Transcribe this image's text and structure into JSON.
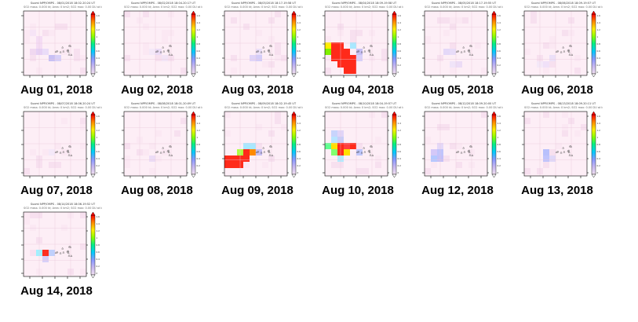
{
  "gallery": {
    "items": [
      {
        "date": "Aug 01, 2018",
        "header": "Suomi NPP/OMPS - 08/01/2018 18:02-20:24 UT",
        "subheader": "SO2 mass: 0.000 kt; Area: 0 km2; SO2 max: 0.00 DU at lon: 0.00 lat: 0.00 ; 18:00UTC",
        "plume": [
          [
            2,
            4,
            "#f4dcf4"
          ],
          [
            2,
            5,
            "#f4dcf4"
          ],
          [
            1,
            6,
            "#f0d8f0"
          ],
          [
            2,
            6,
            "#e6d0f4"
          ],
          [
            3,
            6,
            "#eadcf8"
          ],
          [
            4,
            7,
            "#c8c0f4"
          ],
          [
            5,
            7,
            "#d8d0f8"
          ],
          [
            1,
            3,
            "#f6e4f6"
          ]
        ]
      },
      {
        "date": "Aug 02, 2018",
        "header": "Suomi NPP/OMPS - 08/02/2018 18:04-20:17 UT",
        "subheader": "SO2 mass: 0.000 kt; Area: 0 km2; SO2 max: 0.00 DU at lon: 0.00 lat: 0.00 ; 18:00UTC",
        "plume": [
          [
            5,
            6,
            "#ecdcf6"
          ],
          [
            6,
            7,
            "#f2e4f6"
          ],
          [
            4,
            6,
            "#f4e8f8"
          ]
        ]
      },
      {
        "date": "Aug 03, 2018",
        "header": "Suomi NPP/OMPS - 08/03/2018 18:17-19:58 UT",
        "subheader": "SO2 mass: 0.000 kt; Area: 0 km2; SO2 max: 0.00 DU at lon: 0.00 lat: 0.00 ; 18:00UTC",
        "plume": [
          [
            4,
            7,
            "#e0d4f8"
          ],
          [
            5,
            7,
            "#d4ccf8"
          ],
          [
            5,
            6,
            "#ece0f8"
          ]
        ]
      },
      {
        "date": "Aug 04, 2018",
        "header": "Suomi NPP/OMPS - 08/04/2018 18:09-19:58 UT",
        "subheader": "SO2 mass: 0.000 kt; Area: 0 km2; SO2 max: 0.00 DU at lon: 0.00 lat: 0.00 ; 18:00UTC",
        "plume": [
          [
            0,
            5,
            "#ffee00"
          ],
          [
            1,
            5,
            "#ff2a1a"
          ],
          [
            2,
            5,
            "#ff2a1a"
          ],
          [
            0,
            6,
            "#7ff000"
          ],
          [
            1,
            6,
            "#ff2a1a"
          ],
          [
            2,
            6,
            "#ff2a1a"
          ],
          [
            3,
            6,
            "#ff2a1a"
          ],
          [
            1,
            7,
            "#ff2a1a"
          ],
          [
            2,
            7,
            "#ff2a1a"
          ],
          [
            3,
            7,
            "#ff2a1a"
          ],
          [
            4,
            7,
            "#ff2a1a"
          ],
          [
            2,
            8,
            "#ff2a1a"
          ],
          [
            3,
            8,
            "#ff2a1a"
          ],
          [
            4,
            8,
            "#ff2a1a"
          ],
          [
            3,
            9,
            "#ff2a1a"
          ],
          [
            4,
            9,
            "#ff2a1a"
          ],
          [
            4,
            5,
            "#a8e8ff"
          ],
          [
            5,
            6,
            "#c8c0f4"
          ],
          [
            5,
            7,
            "#d8d0f8"
          ]
        ]
      },
      {
        "date": "Aug 05, 2018",
        "header": "Suomi NPP/OMPS - 08/05/2018 18:17-19:55 UT",
        "subheader": "SO2 mass: 0.000 kt; Area: 0 km2; SO2 max: 0.00 DU at lon: 0.00 lat: 0.00 ; 18:00UTC",
        "plume": [
          [
            3,
            6,
            "#e4d8f8"
          ],
          [
            4,
            6,
            "#e8dcf8"
          ],
          [
            4,
            8,
            "#f0e4f8"
          ],
          [
            5,
            8,
            "#ecdcf6"
          ]
        ]
      },
      {
        "date": "Aug 06, 2018",
        "header": "Suomi NPP/OMPS - 08/06/2018 18:09-19:57 UT",
        "subheader": "SO2 mass: 0.000 kt; Area: 0 km2; SO2 max: 0.00 DU at lon: 0.00 lat: 0.00 ; 18:00UTC",
        "plume": [
          [
            3,
            8,
            "#f0e0f8"
          ],
          [
            4,
            7,
            "#ece0f8"
          ],
          [
            2,
            8,
            "#f4e8f8"
          ]
        ]
      },
      {
        "date": "Aug 07, 2018",
        "header": "Suomi NPP/OMPS - 08/07/2018 18:06-20:24 UT",
        "subheader": "SO2 mass: 0.000 kt; Area: 0 km2; SO2 max: 0.00 DU at lon: 0.00 lat: 0.00 ; 18:00UTC",
        "plume": [
          [
            4,
            6,
            "#f4e8f8"
          ]
        ]
      },
      {
        "date": "Aug 08, 2018",
        "header": "Suomi NPP/OMPS - 08/08/2018 18:01-20:09 UT",
        "subheader": "SO2 mass: 0.000 kt; Area: 0 km2; SO2 max: 0.00 DU at lon: 0.00 lat: 0.00 ; 18:00UTC",
        "plume": [
          [
            4,
            7,
            "#ecdcf6"
          ]
        ]
      },
      {
        "date": "Aug 09, 2018",
        "header": "Suomi NPP/OMPS - 08/09/2018 18:02-19:45 UT",
        "subheader": "SO2 mass: 0.000 kt; Area: 0 km2; SO2 max: 0.00 DU at lon: 0.00 lat: 0.00 ; 18:00UTC",
        "plume": [
          [
            3,
            5,
            "#a8e8ff"
          ],
          [
            4,
            5,
            "#a8e8ff"
          ],
          [
            2,
            6,
            "#b0ff40"
          ],
          [
            3,
            6,
            "#ff2a1a"
          ],
          [
            4,
            6,
            "#ff8a00"
          ],
          [
            0,
            7,
            "#ff2a1a"
          ],
          [
            1,
            7,
            "#ff2a1a"
          ],
          [
            2,
            7,
            "#ff2a1a"
          ],
          [
            3,
            7,
            "#ff2a1a"
          ],
          [
            0,
            8,
            "#ff2a1a"
          ],
          [
            1,
            8,
            "#ff2a1a"
          ],
          [
            2,
            8,
            "#ff2a1a"
          ],
          [
            5,
            6,
            "#c8c0f4"
          ]
        ]
      },
      {
        "date": "Aug 10, 2018",
        "header": "Suomi NPP/OMPS - 08/10/2018 18:04-19:57 UT",
        "subheader": "SO2 mass: 0.000 kt; Area: 0 km2; SO2 max: 0.00 DU at lon: 0.00 lat: 0.00 ; 18:00UTC",
        "plume": [
          [
            1,
            3,
            "#c8d4fc"
          ],
          [
            2,
            3,
            "#e0d4f8"
          ],
          [
            1,
            4,
            "#b8e4ff"
          ],
          [
            2,
            4,
            "#c8ccf8"
          ],
          [
            0,
            5,
            "#60ff90"
          ],
          [
            1,
            5,
            "#ffe000"
          ],
          [
            2,
            5,
            "#ff2a1a"
          ],
          [
            3,
            5,
            "#ff4040"
          ],
          [
            4,
            5,
            "#ff2a1a"
          ],
          [
            1,
            6,
            "#80ff70"
          ],
          [
            2,
            6,
            "#ff2a1a"
          ],
          [
            3,
            6,
            "#ffe000"
          ],
          [
            2,
            7,
            "#b0ecff"
          ],
          [
            5,
            6,
            "#c0c8fc"
          ]
        ]
      },
      {
        "date": "Aug 12, 2018",
        "header": "Suomi NPP/OMPS - 08/12/2018 18:09-20:00 UT",
        "subheader": "SO2 mass: 0.000 kt; Area: 0 km2; SO2 max: 0.00 DU at lon: 0.00 lat: 0.00 ; 18:00UTC",
        "plume": [
          [
            1,
            6,
            "#d4c8f8"
          ],
          [
            2,
            6,
            "#c0c4fc"
          ],
          [
            1,
            7,
            "#b4c8ff"
          ],
          [
            2,
            7,
            "#c4c0f8"
          ],
          [
            2,
            5,
            "#e4d8f8"
          ]
        ]
      },
      {
        "date": "Aug 13, 2018",
        "header": "Suomi NPP/OMPS - 08/13/2018 18:09-20:11 UT",
        "subheader": "SO2 mass: 0.000 kt; Area: 0 km2; SO2 max: 0.00 DU at lon: 0.00 lat: 0.00 ; 18:00UTC",
        "plume": [
          [
            3,
            6,
            "#b8c0fc"
          ],
          [
            3,
            7,
            "#c0c4fc"
          ],
          [
            4,
            7,
            "#e0d8f8"
          ]
        ]
      },
      {
        "date": "Aug 14, 2018",
        "header": "Suomi NPP/OMPS - 08/14/2018 18:06-19:52 UT",
        "subheader": "SO2 mass: 0.000 kt; Area: 0 km2; SO2 max: 0.00 DU at lon: 0.00 lat: 0.00 ; 18:00UTC",
        "plume": [
          [
            2,
            6,
            "#a0f0ff"
          ],
          [
            3,
            6,
            "#ff3020"
          ],
          [
            4,
            6,
            "#c0d0fc"
          ],
          [
            3,
            7,
            "#d8d0f8"
          ]
        ]
      }
    ]
  },
  "colorbar": {
    "tick_labels": [
      "1.6",
      "1.4",
      "1.2",
      "1",
      "0.8",
      "0.6",
      "0.4",
      "0.2",
      "0"
    ],
    "stops": [
      "#ff0000",
      "#ff8800",
      "#ffee00",
      "#88ff00",
      "#00ee88",
      "#00ccff",
      "#8899ff",
      "#c8b8f0",
      "#f0e0f0"
    ]
  },
  "colors": {
    "background_tint": "#fdeef6",
    "map_border": "#000000",
    "date_text": "#000000"
  }
}
